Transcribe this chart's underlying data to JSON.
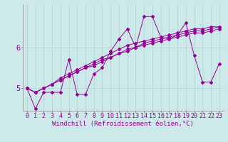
{
  "xlabel": "Windchill (Refroidissement éolien,°C)",
  "bg_color": "#cce8e8",
  "line_color": "#990099",
  "grid_color": "#aad4d4",
  "xlim": [
    -0.5,
    23.5
  ],
  "ylim": [
    4.45,
    7.05
  ],
  "yticks": [
    5,
    6
  ],
  "xticks": [
    0,
    1,
    2,
    3,
    4,
    5,
    6,
    7,
    8,
    9,
    10,
    11,
    12,
    13,
    14,
    15,
    16,
    17,
    18,
    19,
    20,
    21,
    22,
    23
  ],
  "series": [
    [
      5.0,
      4.5,
      4.9,
      4.9,
      4.9,
      5.7,
      4.85,
      4.85,
      5.35,
      5.5,
      5.9,
      6.2,
      6.45,
      6.0,
      6.75,
      6.75,
      6.25,
      6.2,
      6.3,
      6.6,
      5.8,
      5.15,
      5.15,
      5.6
    ],
    [
      5.0,
      4.9,
      5.0,
      5.1,
      5.25,
      5.35,
      5.45,
      5.55,
      5.65,
      5.75,
      5.85,
      5.95,
      6.05,
      6.1,
      6.15,
      6.2,
      6.25,
      6.3,
      6.35,
      6.4,
      6.45,
      6.45,
      6.5,
      6.5
    ],
    [
      5.0,
      4.9,
      5.0,
      5.1,
      5.2,
      5.3,
      5.4,
      5.5,
      5.6,
      5.7,
      5.75,
      5.85,
      5.95,
      6.0,
      6.1,
      6.15,
      6.2,
      6.25,
      6.3,
      6.35,
      6.4,
      6.4,
      6.45,
      6.5
    ],
    [
      5.0,
      4.9,
      5.0,
      5.1,
      5.2,
      5.3,
      5.4,
      5.5,
      5.55,
      5.65,
      5.75,
      5.85,
      5.9,
      6.0,
      6.05,
      6.1,
      6.15,
      6.2,
      6.25,
      6.3,
      6.35,
      6.35,
      6.4,
      6.45
    ]
  ],
  "xlabel_fontsize": 6.5,
  "tick_fontsize": 6.0,
  "ytick_fontsize": 7.5,
  "figwidth": 3.2,
  "figheight": 2.0,
  "dpi": 100
}
